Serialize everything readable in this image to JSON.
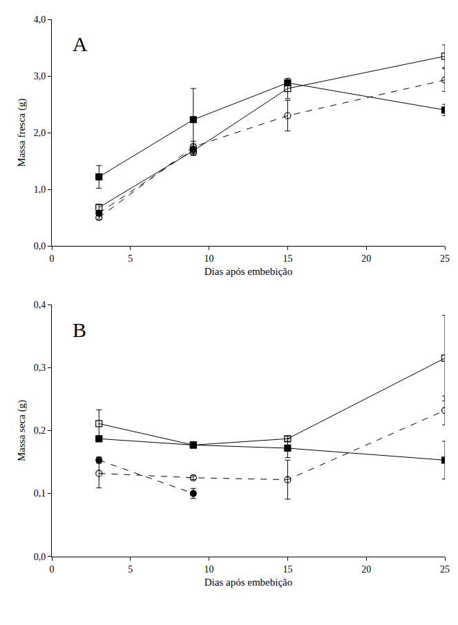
{
  "chart_data": [
    {
      "type": "line",
      "title": "A",
      "x_label": "Dias após embebição",
      "y_label": "Massa fresca (g)",
      "x": [
        3,
        9,
        15,
        25
      ],
      "xlim": [
        0,
        25
      ],
      "xticks": [
        0,
        5,
        10,
        15,
        20,
        25
      ],
      "ylim": [
        0,
        4
      ],
      "yticks": [
        {
          "value": 0,
          "label": "0,0"
        },
        {
          "value": 1,
          "label": "1,0"
        },
        {
          "value": 2,
          "label": "2,0"
        },
        {
          "value": 3,
          "label": "3,0"
        },
        {
          "value": 4,
          "label": "4,0"
        }
      ],
      "grid": false,
      "series": [
        {
          "color": "#000000",
          "marker": "square",
          "line_style": "solid",
          "values": [
            1.22,
            2.23,
            2.88,
            2.4
          ],
          "errors": [
            0.2,
            0.55,
            0.03,
            0.1
          ]
        },
        {
          "color": "#000000",
          "marker": "square-open",
          "line_style": "solid",
          "values": [
            0.68,
            1.68,
            2.78,
            3.35
          ],
          "errors": [
            0.05,
            0.08,
            0.18,
            0.2
          ]
        },
        {
          "color": "#000000",
          "marker": "circle",
          "line_style": "dash",
          "values": [
            0.58,
            1.7,
            null,
            null
          ],
          "errors": [
            0.04,
            0.1,
            null,
            null
          ]
        },
        {
          "color": "#000000",
          "marker": "circle-open",
          "line_style": "dash",
          "values": [
            0.5,
            1.75,
            2.3,
            2.93
          ],
          "errors": [
            0.03,
            0.1,
            0.27,
            0.2
          ]
        }
      ]
    },
    {
      "type": "line",
      "title": "B",
      "x_label": "Dias após embebição",
      "y_label": "Massa seca (g)",
      "x": [
        3,
        9,
        15,
        25
      ],
      "xlim": [
        0,
        25
      ],
      "xticks": [
        0,
        5,
        10,
        15,
        20,
        25
      ],
      "ylim": [
        0,
        0.4
      ],
      "yticks": [
        {
          "value": 0,
          "label": "0,0"
        },
        {
          "value": 0.1,
          "label": "0,1"
        },
        {
          "value": 0.2,
          "label": "0,2"
        },
        {
          "value": 0.3,
          "label": "0,3"
        },
        {
          "value": 0.4,
          "label": "0,4"
        }
      ],
      "grid": false,
      "series": [
        {
          "color": "#000000",
          "marker": "square",
          "line_style": "solid",
          "values": [
            0.187,
            0.177,
            0.172,
            0.153
          ],
          "errors": [
            0.003,
            0.003,
            0.015,
            0.03
          ]
        },
        {
          "color": "#000000",
          "marker": "square-open",
          "line_style": "solid",
          "values": [
            0.211,
            0.177,
            0.187,
            0.315
          ],
          "errors": [
            0.022,
            0.003,
            0.004,
            0.068
          ]
        },
        {
          "color": "#000000",
          "marker": "circle",
          "line_style": "dash",
          "values": [
            0.153,
            0.1,
            null,
            null
          ],
          "errors": [
            0.005,
            0.008,
            null,
            null
          ]
        },
        {
          "color": "#000000",
          "marker": "circle-open",
          "line_style": "dash",
          "values": [
            0.132,
            0.125,
            0.122,
            0.232
          ],
          "errors": [
            0.023,
            0.003,
            0.031,
            0.023
          ]
        }
      ]
    }
  ]
}
